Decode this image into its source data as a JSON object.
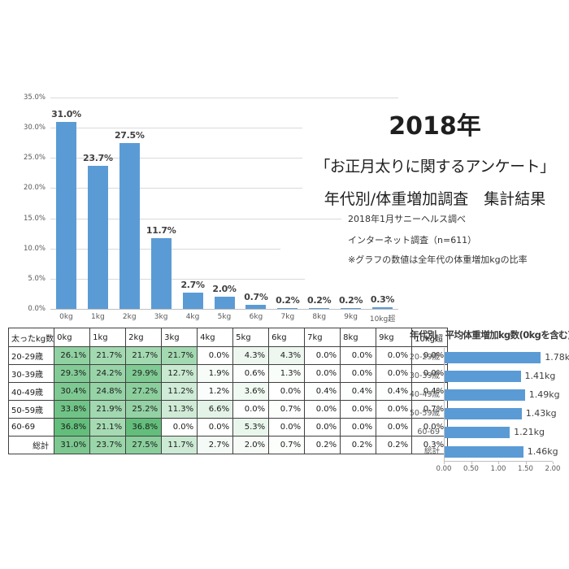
{
  "title_block": {
    "line1": "2018年",
    "line2": "「お正月太りに関するアンケート」",
    "line3": "年代別/体重増加調査　集計結果"
  },
  "notes": [
    "2018年1月サニーヘルス調べ",
    "インターネット調査（n=611）",
    "※グラフの数値は全年代の体重増加kgの比率"
  ],
  "chart_data": [
    {
      "name": "weight-gain-distribution",
      "type": "bar",
      "title": "",
      "categories": [
        "0kg",
        "1kg",
        "2kg",
        "3kg",
        "4kg",
        "5kg",
        "6kg",
        "7kg",
        "8kg",
        "9kg",
        "10kg超"
      ],
      "values": [
        31.0,
        23.7,
        27.5,
        11.7,
        2.7,
        2.0,
        0.7,
        0.2,
        0.2,
        0.2,
        0.3
      ],
      "value_labels": [
        "31.0%",
        "23.7%",
        "27.5%",
        "11.7%",
        "2.7%",
        "2.0%",
        "0.7%",
        "0.2%",
        "0.2%",
        "0.2%",
        "0.3%"
      ],
      "y_ticks": [
        "0.0%",
        "5.0%",
        "10.0%",
        "15.0%",
        "20.0%",
        "25.0%",
        "30.0%",
        "35.0%"
      ],
      "ylim": [
        0,
        35
      ],
      "grid": true,
      "legend": "none",
      "bar_color": "#5b9bd5"
    },
    {
      "name": "average-weight-gain-by-age",
      "type": "bar-horizontal",
      "title": "年代別　平均体重増加kg数(0kgを含む)",
      "categories": [
        "20-29歳",
        "30-39歳",
        "40-49歳",
        "50-59歳",
        "60-69",
        "総計"
      ],
      "values": [
        1.78,
        1.41,
        1.49,
        1.43,
        1.21,
        1.46
      ],
      "value_labels": [
        "1.78kg",
        "1.41kg",
        "1.49kg",
        "1.43kg",
        "1.21kg",
        "1.46kg"
      ],
      "x_ticks": [
        "0.00",
        "0.50",
        "1.00",
        "1.50",
        "2.00"
      ],
      "x_tick_values": [
        0,
        0.5,
        1.0,
        1.5,
        2.0
      ],
      "xlim": [
        0,
        2
      ],
      "grid": false,
      "bar_color": "#5b9bd5"
    },
    {
      "name": "age-weight-heat-table",
      "type": "table",
      "header": [
        "太ったkg数",
        "0kg",
        "1kg",
        "2kg",
        "3kg",
        "4kg",
        "5kg",
        "6kg",
        "7kg",
        "8kg",
        "9kg",
        "10kg超"
      ],
      "rows": [
        {
          "label": "20-29歳",
          "values": [
            "26.1%",
            "21.7%",
            "21.7%",
            "21.7%",
            "0.0%",
            "4.3%",
            "4.3%",
            "0.0%",
            "0.0%",
            "0.0%",
            "0.0%"
          ]
        },
        {
          "label": "30-39歳",
          "values": [
            "29.3%",
            "24.2%",
            "29.9%",
            "12.7%",
            "1.9%",
            "0.6%",
            "1.3%",
            "0.0%",
            "0.0%",
            "0.0%",
            "0.0%"
          ]
        },
        {
          "label": "40-49歳",
          "values": [
            "30.4%",
            "24.8%",
            "27.2%",
            "11.2%",
            "1.2%",
            "3.6%",
            "0.0%",
            "0.4%",
            "0.4%",
            "0.4%",
            "0.4%"
          ]
        },
        {
          "label": "50-59歳",
          "values": [
            "33.8%",
            "21.9%",
            "25.2%",
            "11.3%",
            "6.6%",
            "0.0%",
            "0.7%",
            "0.0%",
            "0.0%",
            "0.0%",
            "0.7%"
          ]
        },
        {
          "label": "60-69",
          "values": [
            "36.8%",
            "21.1%",
            "36.8%",
            "0.0%",
            "0.0%",
            "5.3%",
            "0.0%",
            "0.0%",
            "0.0%",
            "0.0%",
            "0.0%"
          ]
        },
        {
          "label": "総計",
          "values": [
            "31.0%",
            "23.7%",
            "27.5%",
            "11.7%",
            "2.7%",
            "2.0%",
            "0.7%",
            "0.2%",
            "0.2%",
            "0.2%",
            "0.3%"
          ]
        }
      ],
      "heat_scale": {
        "min_value": 0,
        "max_value": 36.8,
        "min_color": "#ffffff",
        "max_color": "#63be7b"
      }
    }
  ],
  "colors": {
    "bar_blue": "#5b9bd5",
    "grid_gray": "#d9d9d9",
    "axis_gray": "#bfbfbf",
    "tick_text": "#595959",
    "label_text": "#404040",
    "heat_green": "#63be7b",
    "table_border": "#404040"
  }
}
